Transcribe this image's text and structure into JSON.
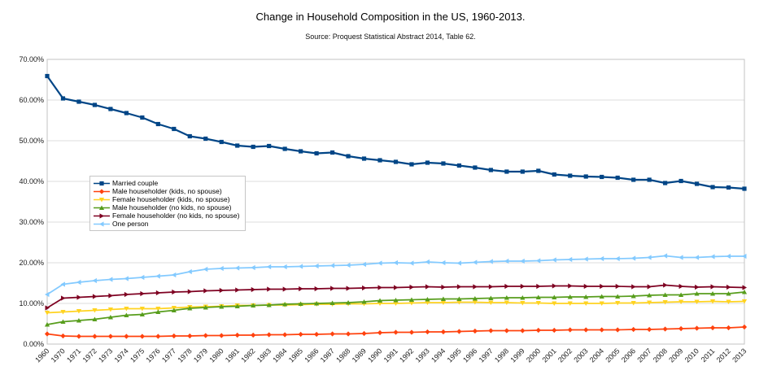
{
  "title": "Change in Household Composition in the US, 1960-2013.",
  "subtitle": "Source: Proquest Statistical Abstract 2014, Table 62.",
  "chart_data": {
    "type": "line",
    "title": "Change in Household Composition in the US, 1960-2013.",
    "subtitle": "Source: Proquest Statistical Abstract 2014, Table 62.",
    "grid": "horizontal",
    "legend_position": "inside-left",
    "ylim": [
      0,
      70
    ],
    "y_ticks": [
      "0.00%",
      "10.00%",
      "20.00%",
      "30.00%",
      "40.00%",
      "50.00%",
      "60.00%",
      "70.00%"
    ],
    "categories": [
      "1960",
      "1970",
      "1971",
      "1972",
      "1973",
      "1974",
      "1975",
      "1976",
      "1977",
      "1978",
      "1979",
      "1980",
      "1981",
      "1982",
      "1983",
      "1984",
      "1985",
      "1986",
      "1987",
      "1988",
      "1989",
      "1990",
      "1991",
      "1992",
      "1993",
      "1994",
      "1995",
      "1996",
      "1997",
      "1998",
      "1999",
      "2000",
      "2001",
      "2002",
      "2003",
      "2004",
      "2005",
      "2006",
      "2007",
      "2008",
      "2009",
      "2010",
      "2011",
      "2012",
      "2013"
    ],
    "series": [
      {
        "name": "Married couple",
        "color": "#004586",
        "marker": "square",
        "values": [
          65.9,
          60.4,
          59.6,
          58.8,
          57.8,
          56.8,
          55.7,
          54.1,
          52.9,
          51.1,
          50.5,
          49.7,
          48.8,
          48.5,
          48.7,
          48.0,
          47.4,
          46.9,
          47.1,
          46.2,
          45.6,
          45.2,
          44.8,
          44.2,
          44.6,
          44.4,
          43.9,
          43.4,
          42.8,
          42.4,
          42.4,
          42.6,
          41.7,
          41.4,
          41.2,
          41.1,
          40.9,
          40.4,
          40.4,
          39.6,
          40.1,
          39.4,
          38.6,
          38.5,
          38.2
        ]
      },
      {
        "name": "Male householder (kids, no spouse)",
        "color": "#FF420E",
        "marker": "diamond",
        "values": [
          2.5,
          2.0,
          1.9,
          1.9,
          1.9,
          1.9,
          1.9,
          1.9,
          2.0,
          2.0,
          2.1,
          2.1,
          2.2,
          2.2,
          2.3,
          2.3,
          2.4,
          2.4,
          2.5,
          2.5,
          2.6,
          2.8,
          2.9,
          2.9,
          3.0,
          3.0,
          3.1,
          3.2,
          3.3,
          3.3,
          3.3,
          3.4,
          3.4,
          3.5,
          3.5,
          3.5,
          3.5,
          3.6,
          3.6,
          3.7,
          3.8,
          3.9,
          4.0,
          4.0,
          4.2
        ]
      },
      {
        "name": "Female householder (kids, no spouse)",
        "color": "#FFD320",
        "marker": "arrow-down",
        "values": [
          7.7,
          7.9,
          8.1,
          8.3,
          8.5,
          8.7,
          8.7,
          8.7,
          8.9,
          9.1,
          9.2,
          9.3,
          9.5,
          9.5,
          9.6,
          9.6,
          9.7,
          9.8,
          9.8,
          9.9,
          9.9,
          10.0,
          10.0,
          10.1,
          10.2,
          10.2,
          10.3,
          10.3,
          10.2,
          10.2,
          10.1,
          10.1,
          10.0,
          10.0,
          10.0,
          10.0,
          10.1,
          10.1,
          10.2,
          10.3,
          10.4,
          10.4,
          10.5,
          10.4,
          10.5
        ]
      },
      {
        "name": "Male householder (no kids, no spouse)",
        "color": "#579D1C",
        "marker": "arrow-up",
        "values": [
          4.8,
          5.5,
          5.8,
          6.1,
          6.6,
          7.1,
          7.3,
          7.9,
          8.3,
          8.8,
          9.0,
          9.2,
          9.3,
          9.5,
          9.6,
          9.8,
          9.9,
          10.0,
          10.1,
          10.2,
          10.4,
          10.7,
          10.8,
          10.9,
          11.0,
          11.1,
          11.1,
          11.2,
          11.3,
          11.4,
          11.4,
          11.5,
          11.5,
          11.6,
          11.6,
          11.7,
          11.7,
          11.8,
          12.0,
          12.1,
          12.1,
          12.4,
          12.4,
          12.4,
          12.8
        ]
      },
      {
        "name": "Female householder (no kids, no spouse)",
        "color": "#7E0021",
        "marker": "arrow-right",
        "values": [
          8.9,
          11.3,
          11.5,
          11.7,
          11.9,
          12.2,
          12.4,
          12.6,
          12.8,
          12.9,
          13.1,
          13.2,
          13.3,
          13.4,
          13.5,
          13.5,
          13.6,
          13.6,
          13.7,
          13.7,
          13.8,
          13.9,
          13.9,
          14.0,
          14.1,
          14.0,
          14.1,
          14.1,
          14.1,
          14.2,
          14.2,
          14.2,
          14.3,
          14.3,
          14.2,
          14.2,
          14.2,
          14.1,
          14.1,
          14.5,
          14.2,
          14.0,
          14.1,
          14.0,
          13.9
        ]
      },
      {
        "name": "One person",
        "color": "#83CAFF",
        "marker": "arrow-left",
        "values": [
          12.2,
          14.7,
          15.2,
          15.6,
          15.9,
          16.1,
          16.4,
          16.7,
          17.0,
          17.8,
          18.4,
          18.6,
          18.7,
          18.8,
          19.0,
          19.0,
          19.1,
          19.2,
          19.3,
          19.4,
          19.6,
          19.9,
          20.0,
          19.9,
          20.2,
          20.0,
          19.9,
          20.1,
          20.3,
          20.4,
          20.4,
          20.5,
          20.7,
          20.8,
          20.9,
          21.0,
          21.0,
          21.1,
          21.3,
          21.7,
          21.3,
          21.3,
          21.5,
          21.6,
          21.6
        ]
      }
    ],
    "colors": {
      "grid": "#dcdcdc",
      "plot_border": "#c3c3c3",
      "axis_text": "#1a1a1a"
    }
  }
}
